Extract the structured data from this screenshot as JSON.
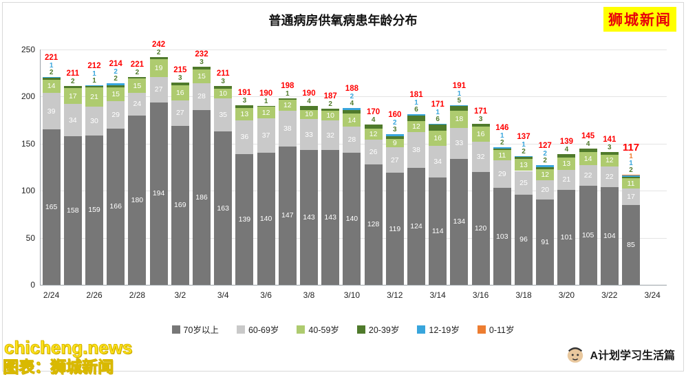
{
  "title": "普通病房供氧病患年龄分布",
  "logo": {
    "text": "狮城新闻",
    "bg_color": "#ffff00",
    "text_color": "#e8000a"
  },
  "watermarks": {
    "line1": "chicheng.news",
    "line2": "图表：狮城新闻"
  },
  "footer_right": "A计划学习生活篇",
  "chart_data": {
    "type": "bar",
    "stacked": true,
    "title": "普通病房供氧病患年龄分布",
    "xlabel": "",
    "ylabel": "",
    "ylim": [
      0,
      250
    ],
    "y_ticks": [
      0,
      50,
      100,
      150,
      200,
      250
    ],
    "grid": true,
    "legend_position": "bottom",
    "total_label_color": "#ff0000",
    "categories": [
      "2/24",
      "2/25",
      "2/26",
      "2/27",
      "2/28",
      "3/1",
      "3/2",
      "3/3",
      "3/4",
      "3/5",
      "3/6",
      "3/7",
      "3/8",
      "3/9",
      "3/10",
      "3/11",
      "3/12",
      "3/13",
      "3/14",
      "3/15",
      "3/16",
      "3/17",
      "3/18",
      "3/19",
      "3/20",
      "3/21",
      "3/22",
      "3/23"
    ],
    "x_tick_labels": [
      "2/24",
      "2/26",
      "2/28",
      "3/2",
      "3/4",
      "3/6",
      "3/8",
      "3/10",
      "3/12",
      "3/14",
      "3/16",
      "3/18",
      "3/20",
      "3/22",
      "3/24"
    ],
    "series": [
      {
        "name": "70岁以上",
        "color": "#777777",
        "values": [
          165,
          158,
          159,
          166,
          180,
          194,
          169,
          186,
          163,
          139,
          140,
          147,
          143,
          143,
          140,
          128,
          119,
          124,
          114,
          134,
          120,
          103,
          96,
          91,
          101,
          105,
          104,
          85
        ]
      },
      {
        "name": "60-69岁",
        "color": "#c9c9c9",
        "values": [
          39,
          34,
          30,
          29,
          24,
          27,
          27,
          28,
          35,
          36,
          37,
          38,
          33,
          32,
          28,
          26,
          27,
          38,
          34,
          33,
          32,
          29,
          25,
          20,
          21,
          22,
          22,
          17
        ]
      },
      {
        "name": "40-59岁",
        "color": "#aecb6f",
        "values": [
          14,
          17,
          21,
          15,
          15,
          19,
          16,
          15,
          10,
          13,
          12,
          12,
          10,
          10,
          14,
          12,
          9,
          12,
          16,
          18,
          16,
          11,
          13,
          12,
          13,
          14,
          12,
          11
        ]
      },
      {
        "name": "20-39岁",
        "color": "#4f7a2b",
        "values": [
          2,
          2,
          1,
          2,
          2,
          2,
          3,
          3,
          3,
          3,
          1,
          1,
          4,
          2,
          4,
          4,
          3,
          6,
          6,
          5,
          3,
          2,
          2,
          2,
          4,
          4,
          3,
          2
        ]
      },
      {
        "name": "12-19岁",
        "color": "#38a5dc",
        "values": [
          1,
          0,
          1,
          2,
          0,
          0,
          0,
          0,
          0,
          0,
          0,
          0,
          0,
          0,
          2,
          0,
          2,
          1,
          1,
          1,
          0,
          1,
          1,
          2,
          0,
          0,
          0,
          1
        ]
      },
      {
        "name": "0-11岁",
        "color": "#ed7d31",
        "values": [
          0,
          0,
          0,
          0,
          0,
          0,
          0,
          0,
          0,
          0,
          0,
          0,
          0,
          0,
          0,
          0,
          0,
          0,
          0,
          0,
          0,
          0,
          0,
          0,
          0,
          0,
          0,
          1
        ]
      }
    ],
    "totals": [
      221,
      211,
      212,
      214,
      221,
      242,
      215,
      232,
      211,
      191,
      190,
      198,
      190,
      187,
      188,
      170,
      160,
      181,
      171,
      191,
      171,
      146,
      137,
      127,
      139,
      145,
      141,
      117
    ]
  }
}
